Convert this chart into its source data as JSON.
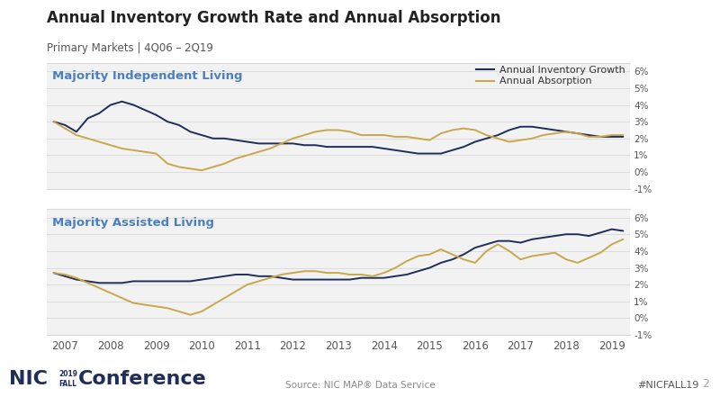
{
  "title": "Annual Inventory Growth Rate and Annual Absorption",
  "subtitle": "Primary Markets | 4Q06 – 2Q19",
  "navy": "#1f2d5a",
  "gold": "#c8a84b",
  "label_color": "#4a7fc1",
  "background": "#ffffff",
  "panel_background": "#f2f2f2",
  "grid_color": "#d8d8d8",
  "legend_inventory": "Annual Inventory Growth",
  "legend_absorption": "Annual Absorption",
  "panel1_label": "Majority Independent Living",
  "panel2_label": "Majority Assisted Living",
  "x_labels": [
    "2007",
    "2008",
    "2009",
    "2010",
    "2011",
    "2012",
    "2013",
    "2014",
    "2015",
    "2016",
    "2017",
    "2018",
    "2019"
  ],
  "ylim": [
    -0.01,
    0.065
  ],
  "yticks": [
    -0.01,
    0.0,
    0.01,
    0.02,
    0.03,
    0.04,
    0.05,
    0.06
  ],
  "ytick_labels": [
    "-1%",
    "0%",
    "1%",
    "2%",
    "3%",
    "4%",
    "5%",
    "6%"
  ],
  "x_values": [
    2006.75,
    2007.0,
    2007.25,
    2007.5,
    2007.75,
    2008.0,
    2008.25,
    2008.5,
    2008.75,
    2009.0,
    2009.25,
    2009.5,
    2009.75,
    2010.0,
    2010.25,
    2010.5,
    2010.75,
    2011.0,
    2011.25,
    2011.5,
    2011.75,
    2012.0,
    2012.25,
    2012.5,
    2012.75,
    2013.0,
    2013.25,
    2013.5,
    2013.75,
    2014.0,
    2014.25,
    2014.5,
    2014.75,
    2015.0,
    2015.25,
    2015.5,
    2015.75,
    2016.0,
    2016.25,
    2016.5,
    2016.75,
    2017.0,
    2017.25,
    2017.5,
    2017.75,
    2018.0,
    2018.25,
    2018.5,
    2018.75,
    2019.0,
    2019.25
  ],
  "il_inventory": [
    0.03,
    0.028,
    0.024,
    0.032,
    0.035,
    0.04,
    0.042,
    0.04,
    0.037,
    0.034,
    0.03,
    0.028,
    0.024,
    0.022,
    0.02,
    0.02,
    0.019,
    0.018,
    0.017,
    0.017,
    0.017,
    0.017,
    0.016,
    0.016,
    0.015,
    0.015,
    0.015,
    0.015,
    0.015,
    0.014,
    0.013,
    0.012,
    0.011,
    0.011,
    0.011,
    0.013,
    0.015,
    0.018,
    0.02,
    0.022,
    0.025,
    0.027,
    0.027,
    0.026,
    0.025,
    0.024,
    0.023,
    0.022,
    0.021,
    0.021,
    0.021
  ],
  "il_absorption": [
    0.03,
    0.026,
    0.022,
    0.02,
    0.018,
    0.016,
    0.014,
    0.013,
    0.012,
    0.011,
    0.005,
    0.003,
    0.002,
    0.001,
    0.003,
    0.005,
    0.008,
    0.01,
    0.012,
    0.014,
    0.017,
    0.02,
    0.022,
    0.024,
    0.025,
    0.025,
    0.024,
    0.022,
    0.022,
    0.022,
    0.021,
    0.021,
    0.02,
    0.019,
    0.023,
    0.025,
    0.026,
    0.025,
    0.022,
    0.02,
    0.018,
    0.019,
    0.02,
    0.022,
    0.023,
    0.024,
    0.023,
    0.021,
    0.021,
    0.022,
    0.022
  ],
  "al_inventory": [
    0.027,
    0.025,
    0.023,
    0.022,
    0.021,
    0.021,
    0.021,
    0.022,
    0.022,
    0.022,
    0.022,
    0.022,
    0.022,
    0.023,
    0.024,
    0.025,
    0.026,
    0.026,
    0.025,
    0.025,
    0.024,
    0.023,
    0.023,
    0.023,
    0.023,
    0.023,
    0.023,
    0.024,
    0.024,
    0.024,
    0.025,
    0.026,
    0.028,
    0.03,
    0.033,
    0.035,
    0.038,
    0.042,
    0.044,
    0.046,
    0.046,
    0.045,
    0.047,
    0.048,
    0.049,
    0.05,
    0.05,
    0.049,
    0.051,
    0.053,
    0.052
  ],
  "al_absorption": [
    0.027,
    0.026,
    0.024,
    0.021,
    0.018,
    0.015,
    0.012,
    0.009,
    0.008,
    0.007,
    0.006,
    0.004,
    0.002,
    0.004,
    0.008,
    0.012,
    0.016,
    0.02,
    0.022,
    0.024,
    0.026,
    0.027,
    0.028,
    0.028,
    0.027,
    0.027,
    0.026,
    0.026,
    0.025,
    0.027,
    0.03,
    0.034,
    0.037,
    0.038,
    0.041,
    0.038,
    0.035,
    0.033,
    0.04,
    0.044,
    0.04,
    0.035,
    0.037,
    0.038,
    0.039,
    0.035,
    0.033,
    0.036,
    0.039,
    0.044,
    0.047
  ],
  "footer_source": "Source: NIC MAP® Data Service",
  "footer_right": "#NICFALL19",
  "footer_page": "2"
}
